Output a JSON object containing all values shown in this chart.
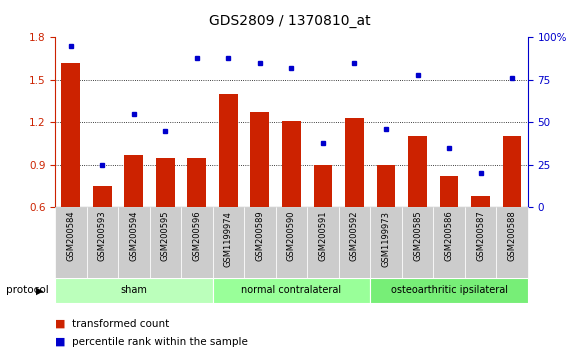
{
  "title": "GDS2809 / 1370810_at",
  "samples": [
    "GSM200584",
    "GSM200593",
    "GSM200594",
    "GSM200595",
    "GSM200596",
    "GSM1199974",
    "GSM200589",
    "GSM200590",
    "GSM200591",
    "GSM200592",
    "GSM1199973",
    "GSM200585",
    "GSM200586",
    "GSM200587",
    "GSM200588"
  ],
  "bar_values": [
    1.62,
    0.75,
    0.97,
    0.95,
    0.95,
    1.4,
    1.27,
    1.21,
    0.9,
    1.23,
    0.9,
    1.1,
    0.82,
    0.68,
    1.1
  ],
  "dot_values": [
    95,
    25,
    55,
    45,
    88,
    88,
    85,
    82,
    38,
    85,
    46,
    78,
    35,
    20,
    76
  ],
  "bar_color": "#cc2200",
  "dot_color": "#0000cc",
  "ylim_left": [
    0.6,
    1.8
  ],
  "ylim_right": [
    0,
    100
  ],
  "yticks_left": [
    0.6,
    0.9,
    1.2,
    1.5,
    1.8
  ],
  "yticks_right": [
    0,
    25,
    50,
    75,
    100
  ],
  "ytick_labels_right": [
    "0",
    "25",
    "50",
    "75",
    "100%"
  ],
  "groups": [
    {
      "label": "sham",
      "start": 0,
      "end": 5,
      "color": "#bbffbb"
    },
    {
      "label": "normal contralateral",
      "start": 5,
      "end": 10,
      "color": "#99ff99"
    },
    {
      "label": "osteoarthritic ipsilateral",
      "start": 10,
      "end": 15,
      "color": "#77ee77"
    }
  ],
  "protocol_label": "protocol",
  "legend": [
    {
      "color": "#cc2200",
      "label": "transformed count"
    },
    {
      "color": "#0000cc",
      "label": "percentile rank within the sample"
    }
  ],
  "background_color": "#ffffff",
  "tick_bg_color": "#cccccc",
  "hgrid_ticks": [
    0.9,
    1.2,
    1.5
  ]
}
